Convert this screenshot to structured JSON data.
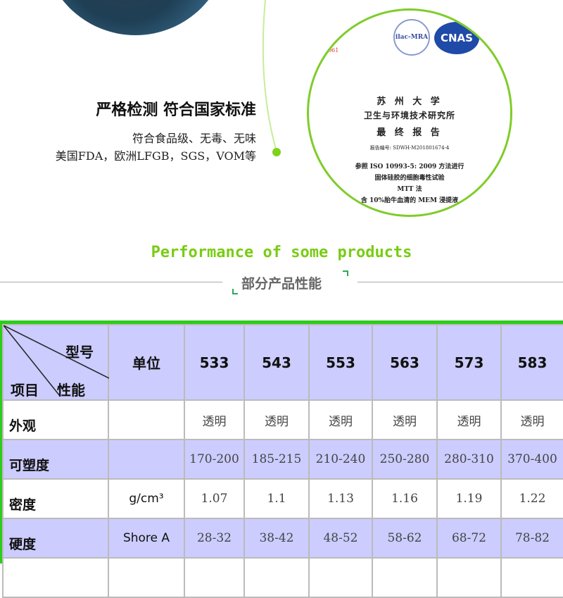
{
  "feature": {
    "title": "严格检测  符合国家标准",
    "lines": [
      "符合食品级、无毒、无味",
      "美国FDA，欧洲LFGB，SGS，VOM等"
    ]
  },
  "certificate": {
    "logos": [
      "ilac-MRA",
      "CNAS"
    ],
    "stamp": "4061",
    "lines": [
      "苏 州 大 学",
      "卫生与环境技术研究所",
      "最 终 报 告",
      "报告编号:  SDWH-M201801674-4",
      "参照 ISO 10993-5: 2009 方法进行",
      "固体硅胶的细胞毒性试验",
      "MTT 法",
      "含 10%胎牛血清的 MEM 浸提液"
    ]
  },
  "section": {
    "title_en": "Performance of some products",
    "title_cn": "部分产品性能"
  },
  "colors": {
    "accent": "#78cc14",
    "table_border": "#2ccc1c",
    "row_shade": "#ccccff"
  },
  "table": {
    "corner": {
      "top": "型号",
      "bottom_left": "项目",
      "bottom_mid": "性能"
    },
    "unit_header": "单位",
    "models": [
      "533",
      "543",
      "553",
      "563",
      "573",
      "583"
    ],
    "rows": [
      {
        "label": "外观",
        "unit": "",
        "values": [
          "透明",
          "透明",
          "透明",
          "透明",
          "透明",
          "透明"
        ]
      },
      {
        "label": "可塑度",
        "unit": "",
        "values": [
          "170-200",
          "185-215",
          "210-240",
          "250-280",
          "280-310",
          "370-400"
        ]
      },
      {
        "label": "密度",
        "unit": "g/cm³",
        "values": [
          "1.07",
          "1.1",
          "1.13",
          "1.16",
          "1.19",
          "1.22"
        ]
      },
      {
        "label": "硬度",
        "unit": "Shore A",
        "values": [
          "28-32",
          "38-42",
          "48-52",
          "58-62",
          "68-72",
          "78-82"
        ]
      }
    ]
  }
}
